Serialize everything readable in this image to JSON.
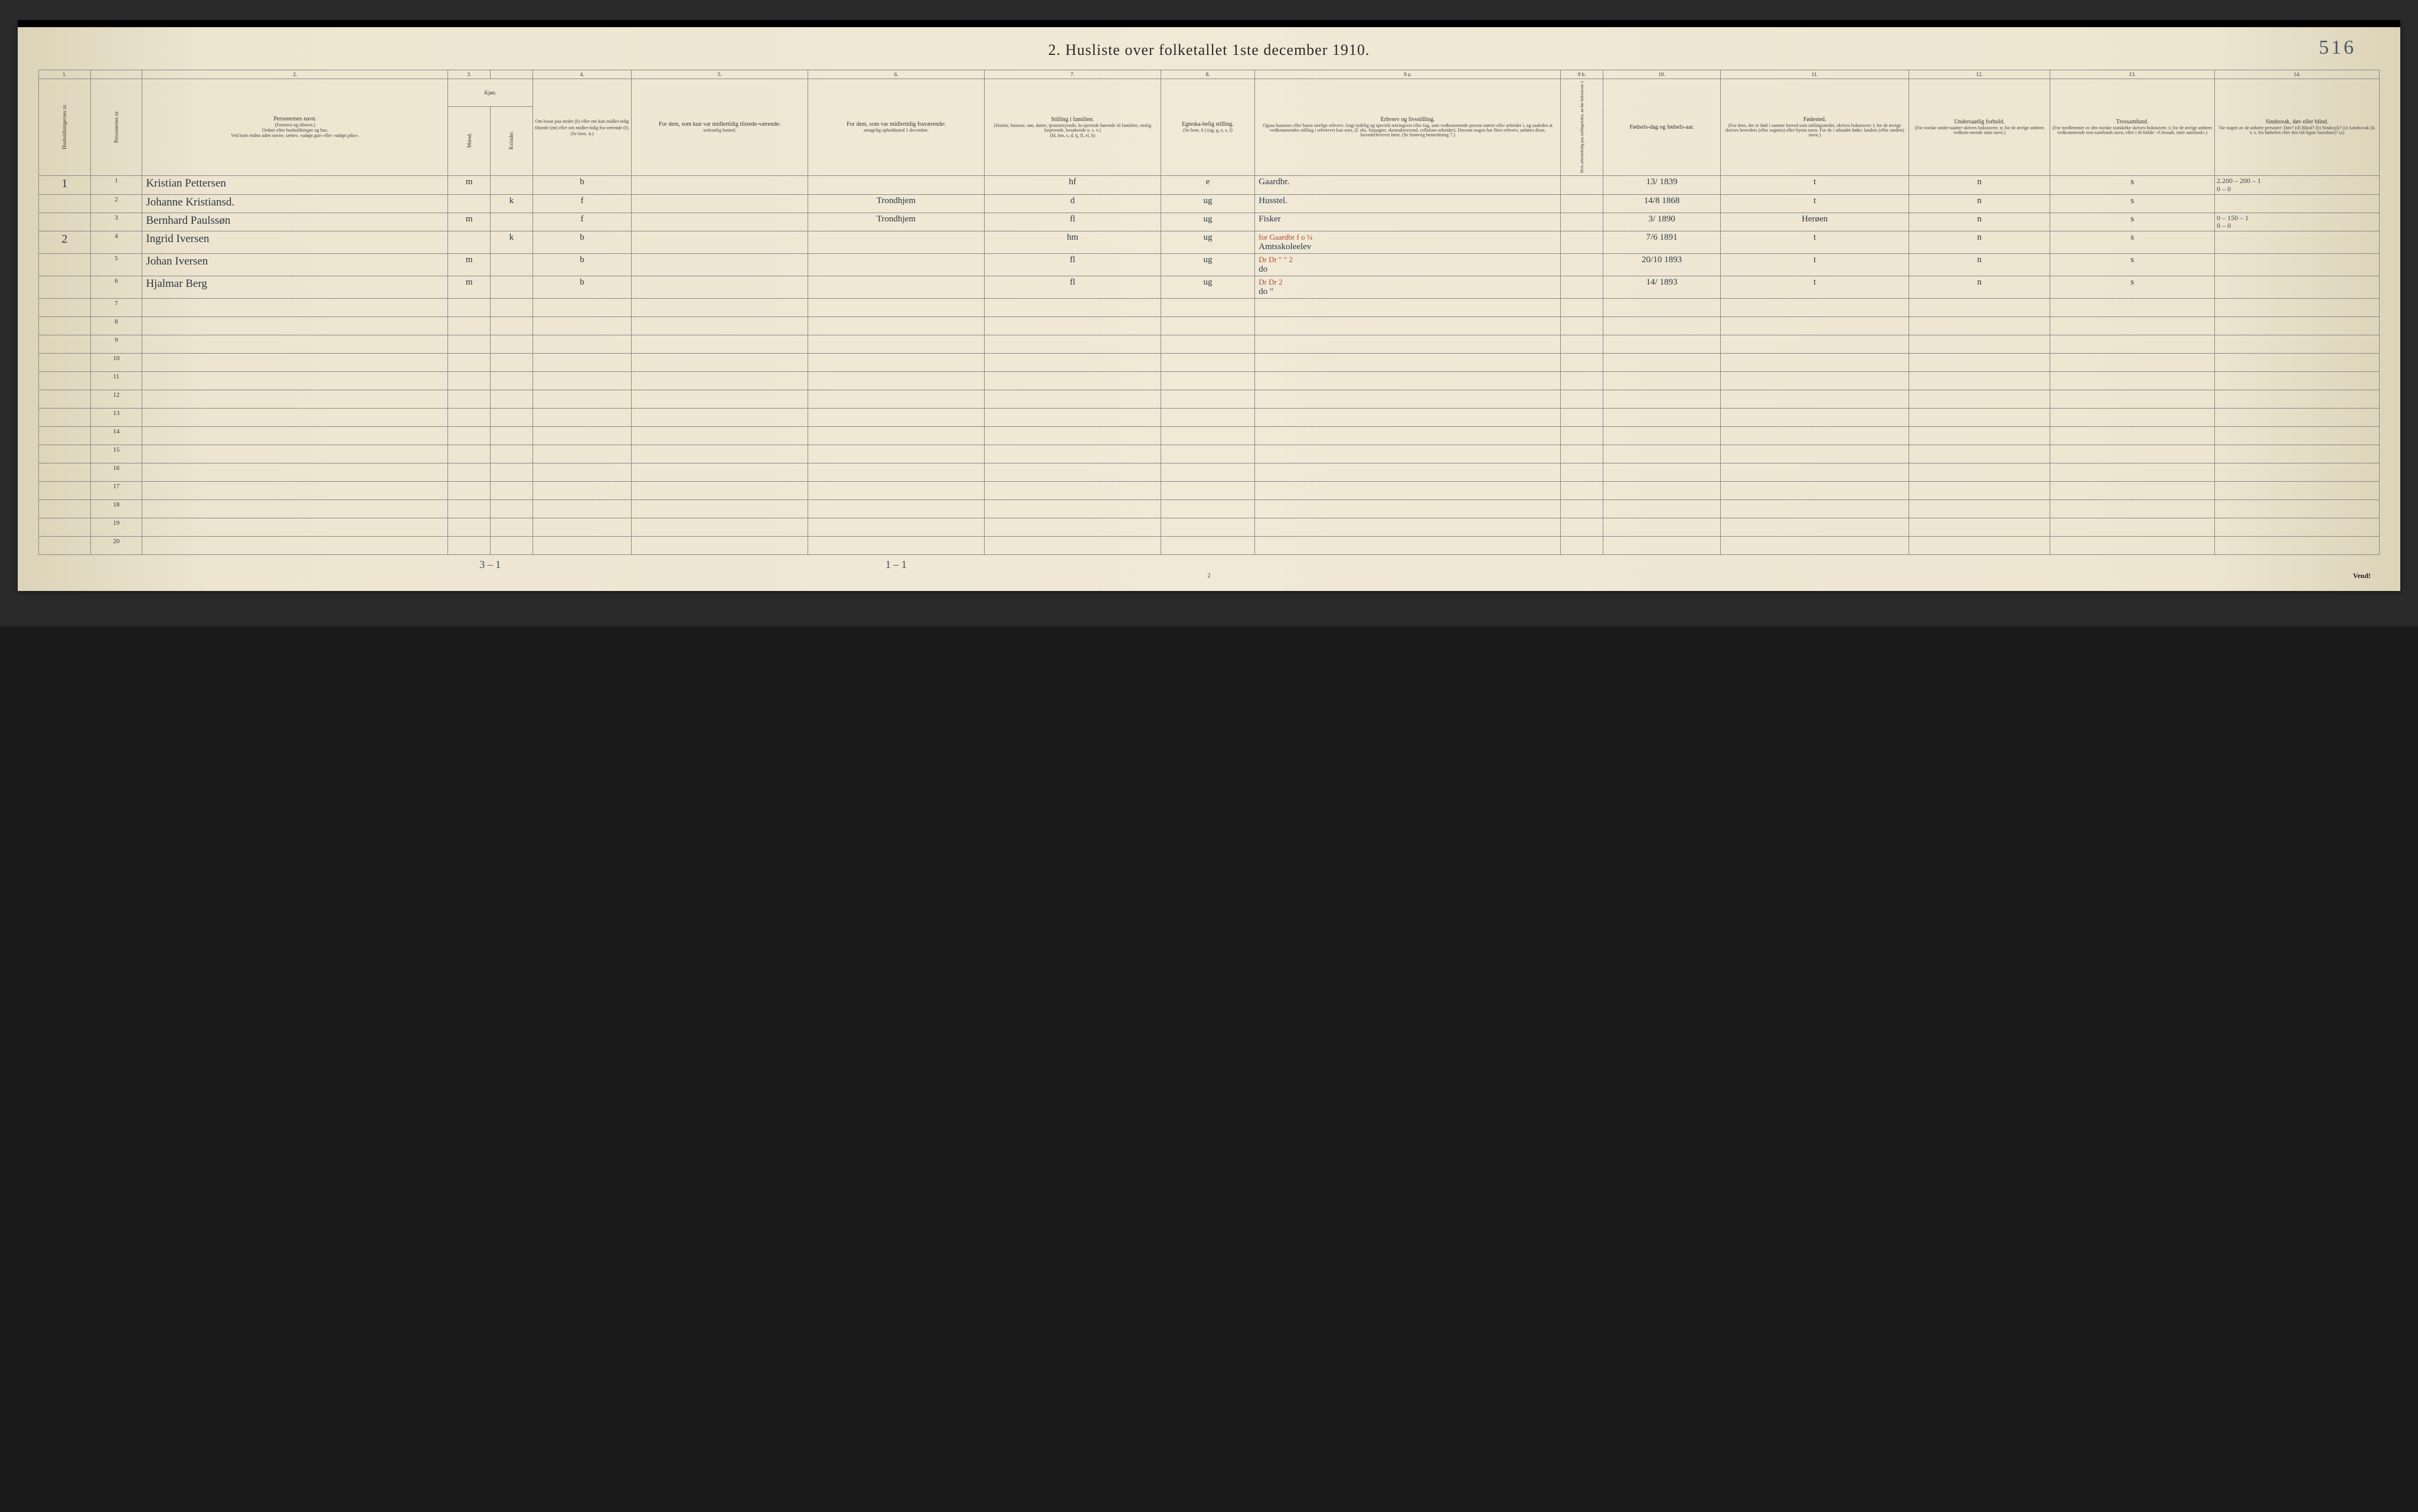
{
  "title": "2.  Husliste over folketallet 1ste december 1910.",
  "page_annotation": "516",
  "footer_page": "2",
  "vend": "Vend!",
  "below_notes": {
    "col_mk": "3 – 1",
    "col_6": "1 – 1"
  },
  "col_numbers": [
    "1.",
    "",
    "2.",
    "3.",
    "",
    "4.",
    "5.",
    "6.",
    "7.",
    "8.",
    "9 a.",
    "9 b.",
    "10.",
    "11.",
    "12.",
    "13.",
    "14."
  ],
  "headers": {
    "c1": "Husholdningernes nr.",
    "c2": "Personernes nr.",
    "c3_main": "Personernes navn.",
    "c3_sub1": "(Fornavn og tilnavn.)",
    "c3_sub2": "Ordnet efter husholdninger og hus.",
    "c3_sub3": "Ved barn endnu uden navne, sættes: «udøpt gut» eller «udøpt pike».",
    "c45_main": "Kjøn.",
    "c4": "Mænd.",
    "c5": "Kvinder.",
    "c6_main": "Om bosat paa stedet (b) eller om kun midler-tidig tilstede (mt) eller om midler-tidig fra-værende (f). (Se bem. 4.)",
    "c7_main": "For dem, som kun var midlertidig tilstede-værende:",
    "c7_sub": "sedvanlig bosted.",
    "c8_main": "For dem, som var midlertidig fraværende:",
    "c8_sub": "antagelig opholdssted 1 december.",
    "c9_main": "Stilling i familien.",
    "c9_sub1": "(Husfar, husmor, søn, datter, tjenestetyende, lo-sjerende hørende til familien, enslig losjerende, besøkende o. s. v.)",
    "c9_sub2": "(hf, hm, s, d, tj, fl, el, b)",
    "c10_main": "Egteska-belig stilling.",
    "c10_sub": "(Se bem. 6.) (ug, g, e, s, f)",
    "c11_main": "Erhverv og livsstilling.",
    "c11_sub": "Ogsaa husmors eller barns særlige erhverv. Angi tydelig og specielt næringsvei eller fag, som vedkommende person utøver eller arbeider i, og saaledes at vedkommendes stilling i erhvervet kan sees, (f. eks. forpagter, skomakersvend, cellulose-arbeider). Dersom nogen har flere erhverv, anføres disse, hovederhvervet først. (Se forøvrig bemerkning 7.)",
    "c12_main": "Hvis arbeidsledig paa tællingstiden, an-før bokstaven: l.",
    "c13_main": "Fødsels-dag og fødsels-aar.",
    "c14_main": "Fødested.",
    "c14_sub": "(For dem, der er født i samme herred som tællingsstedet, skrives bokstaven: t; for de øvrige skrives herredets (eller sognets) eller byens navn. For de i utlandet fødte: landets (eller stedets) navn.)",
    "c15_main": "Undersaatlig forhold.",
    "c15_sub": "(For norske under-saatter skrives bokstaven: n; for de øvrige anføres vedkom-mende stats navn.)",
    "c16_main": "Trossamfund.",
    "c16_sub": "(For medlemmer av den norske statskirke skrives bokstaven: s; for de øvrige anføres vedkommende tros-samfunds navn, eller i til-fælde: «Uttraadt, intet samfund».)",
    "c17_main": "Sindssvak, døv eller blind.",
    "c17_sub": "Var nogen av de anførte personer: Døv? (d) Blind? (b) Sindssyk? (s) Aandssvak (d. v. s. fra fødselen eller den tid-ligste barndom)? (a)"
  },
  "rows": [
    {
      "hh": "1",
      "pn": "1",
      "name": "Kristian Pettersen",
      "m": "m",
      "k": "",
      "b": "b",
      "c7": "",
      "c8": "",
      "fam": "hf",
      "eg": "e",
      "erh": "Gaardbr.",
      "l": "",
      "dob": "13/ 1839",
      "fst": "t",
      "und": "n",
      "tro": "s",
      "c17": "2.200 – 200 – 1\n0 – 0"
    },
    {
      "hh": "",
      "pn": "2",
      "name": "Johanne Kristiansd.",
      "m": "",
      "k": "k",
      "b": "f",
      "c7": "",
      "c8": "Trondhjem",
      "fam": "d",
      "eg": "ug",
      "erh": "Husstel.",
      "l": "",
      "dob": "14/8 1868",
      "fst": "t",
      "und": "n",
      "tro": "s",
      "c17": ""
    },
    {
      "hh": "",
      "pn": "3",
      "name": "Bernhard Paulssøn",
      "m": "m",
      "k": "",
      "b": "f",
      "c7": "",
      "c8": "Trondhjem",
      "fam": "fl",
      "eg": "ug",
      "erh": "Fisker",
      "l": "",
      "dob": "3/ 1890",
      "fst": "Herøen",
      "und": "n",
      "tro": "s",
      "c17": "0 – 150 – 1\n0 – 0"
    },
    {
      "hh": "2",
      "pn": "4",
      "name": "Ingrid Iversen",
      "m": "",
      "k": "k",
      "b": "b",
      "c7": "",
      "c8": "",
      "fam": "hm",
      "eg": "ug",
      "erh": "Amtsskoleelev",
      "erh_red": "for Gaardbr    f o    ¼",
      "l": "",
      "dob": "7/6 1891",
      "fst": "t",
      "und": "n",
      "tro": "s",
      "c17": ""
    },
    {
      "hh": "",
      "pn": "5",
      "name": "Johan Iversen",
      "m": "m",
      "k": "",
      "b": "b",
      "c7": "",
      "c8": "",
      "fam": "fl",
      "eg": "ug",
      "erh": "do",
      "erh_red": "Dr  Dr           \"   \"  2",
      "l": "",
      "dob": "20/10 1893",
      "fst": "t",
      "und": "n",
      "tro": "s",
      "c17": ""
    },
    {
      "hh": "",
      "pn": "6",
      "name": "Hjalmar Berg",
      "m": "m",
      "k": "",
      "b": "b",
      "c7": "",
      "c8": "",
      "fam": "fl",
      "eg": "ug",
      "erh": "do   \"",
      "erh_red": "Dr  Dr               2",
      "l": "",
      "dob": "14/ 1893",
      "fst": "t",
      "und": "n",
      "tro": "s",
      "c17": ""
    }
  ],
  "empty_rows": [
    7,
    8,
    9,
    10,
    11,
    12,
    13,
    14,
    15,
    16,
    17,
    18,
    19,
    20
  ]
}
